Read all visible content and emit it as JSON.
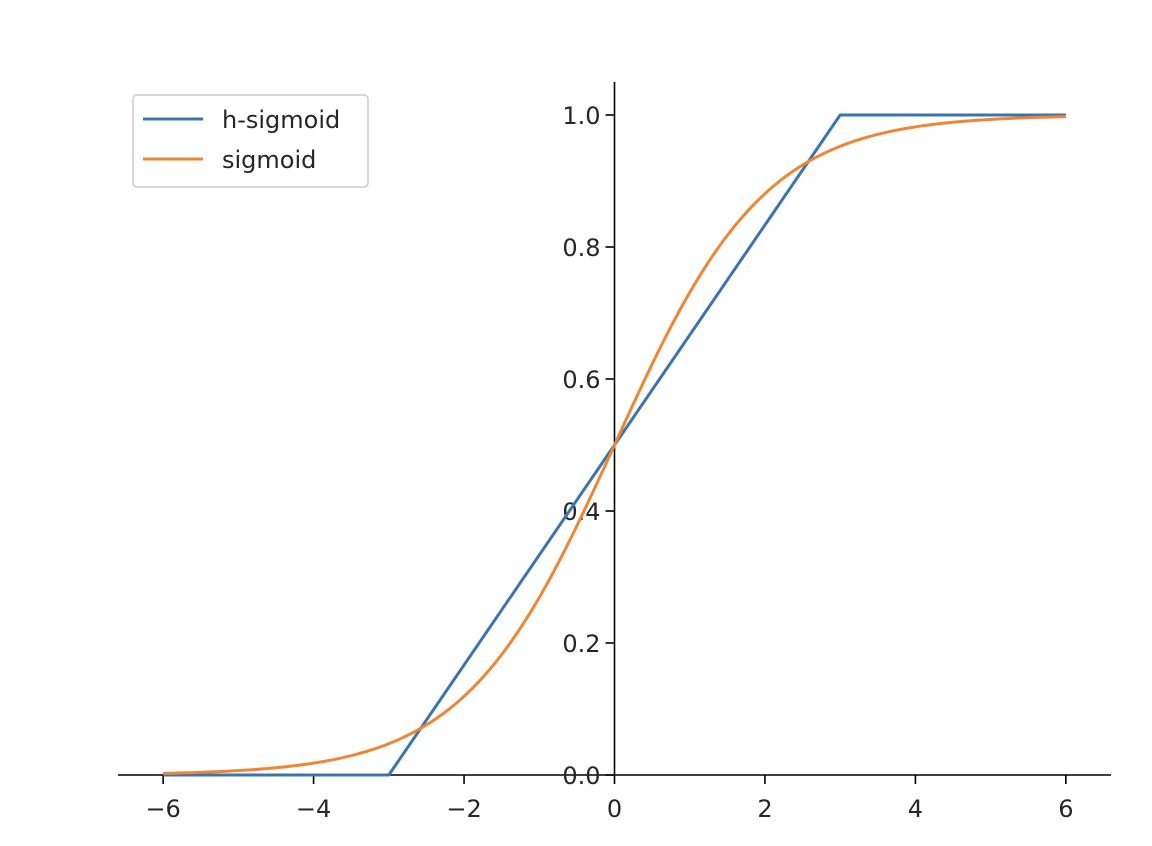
{
  "chart_data": {
    "type": "line",
    "title": "",
    "xlabel": "",
    "ylabel": "",
    "xlim": [
      -6.6,
      6.6
    ],
    "ylim": [
      0.0,
      1.05
    ],
    "xticks": [
      -6,
      -4,
      -2,
      0,
      2,
      4,
      6
    ],
    "xtick_labels": [
      "−6",
      "−4",
      "−2",
      "0",
      "2",
      "4",
      "6"
    ],
    "yticks": [
      0.0,
      0.2,
      0.4,
      0.6,
      0.8,
      1.0
    ],
    "ytick_labels": [
      "0.0",
      "0.2",
      "0.4",
      "0.6",
      "0.8",
      "1.0"
    ],
    "axes_style": "centered-y-axis-at-x-0",
    "grid": false,
    "legend_position": "top-left",
    "series": [
      {
        "name": "h-sigmoid",
        "color": "#3a75af",
        "x": [
          -6,
          -3,
          3,
          6
        ],
        "y": [
          0.0,
          0.0,
          1.0,
          1.0
        ]
      },
      {
        "name": "sigmoid",
        "color": "#ef8636",
        "x": [
          -6,
          -5,
          -4,
          -3,
          -2.5,
          -2,
          -1.5,
          -1,
          -0.5,
          0,
          0.5,
          1,
          1.5,
          2,
          2.5,
          3,
          4,
          5,
          6
        ],
        "y": [
          0.002,
          0.007,
          0.018,
          0.047,
          0.076,
          0.119,
          0.182,
          0.269,
          0.378,
          0.5,
          0.622,
          0.731,
          0.818,
          0.881,
          0.924,
          0.953,
          0.982,
          0.993,
          0.998
        ]
      }
    ]
  }
}
